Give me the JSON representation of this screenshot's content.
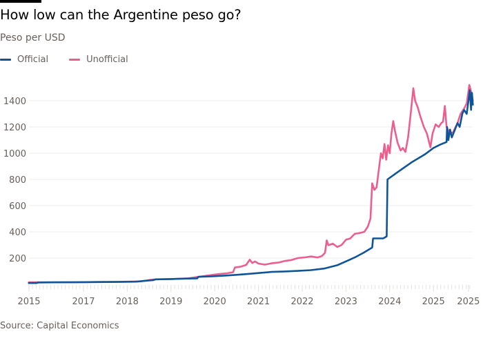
{
  "header": {
    "title": "How low can the Argentine peso go?",
    "subtitle": "Peso per USD"
  },
  "legend": [
    {
      "label": "Official",
      "color": "#0f5499"
    },
    {
      "label": "Unofficial",
      "color": "#eb5e8d"
    }
  ],
  "footer": {
    "source": "Source: Capital Economics"
  },
  "chart_data": {
    "type": "line",
    "title": "How low can the Argentine peso go?",
    "subtitle": "Peso per USD",
    "xlabel": "",
    "ylabel": "Peso per USD",
    "xlim": [
      2015.75,
      2026.0
    ],
    "ylim": [
      0,
      1500
    ],
    "grid": true,
    "legend_position": "top-left",
    "y_ticks": [
      200,
      400,
      600,
      800,
      1000,
      1200,
      1400
    ],
    "x_tick_labels": [
      {
        "label": "2015",
        "at": 2015.75
      },
      {
        "label": "2017",
        "at": 2017.0
      },
      {
        "label": "2018",
        "at": 2018.0
      },
      {
        "label": "2019",
        "at": 2019.0
      },
      {
        "label": "2020",
        "at": 2020.0
      },
      {
        "label": "2021",
        "at": 2021.0
      },
      {
        "label": "2022",
        "at": 2022.0
      },
      {
        "label": "2023",
        "at": 2023.0
      },
      {
        "label": "2024",
        "at": 2024.0
      },
      {
        "label": "2025",
        "at": 2025.0
      },
      {
        "label": "2025",
        "at": 2025.8
      }
    ],
    "series": [
      {
        "name": "Unofficial",
        "color": "#eb5e8d",
        "points": [
          [
            2015.75,
            15
          ],
          [
            2015.95,
            15
          ],
          [
            2016.3,
            15
          ],
          [
            2016.8,
            16
          ],
          [
            2017.3,
            18
          ],
          [
            2017.8,
            19
          ],
          [
            2018.3,
            22
          ],
          [
            2018.6,
            37
          ],
          [
            2019.0,
            40
          ],
          [
            2019.4,
            45
          ],
          [
            2019.62,
            57
          ],
          [
            2019.75,
            62
          ],
          [
            2019.95,
            72
          ],
          [
            2020.1,
            78
          ],
          [
            2020.3,
            85
          ],
          [
            2020.42,
            92
          ],
          [
            2020.46,
            128
          ],
          [
            2020.6,
            135
          ],
          [
            2020.72,
            148
          ],
          [
            2020.8,
            188
          ],
          [
            2020.86,
            162
          ],
          [
            2020.92,
            175
          ],
          [
            2021.0,
            158
          ],
          [
            2021.15,
            150
          ],
          [
            2021.3,
            160
          ],
          [
            2021.45,
            165
          ],
          [
            2021.6,
            178
          ],
          [
            2021.75,
            185
          ],
          [
            2021.9,
            200
          ],
          [
            2022.05,
            205
          ],
          [
            2022.2,
            212
          ],
          [
            2022.35,
            205
          ],
          [
            2022.45,
            215
          ],
          [
            2022.52,
            240
          ],
          [
            2022.56,
            335
          ],
          [
            2022.6,
            298
          ],
          [
            2022.7,
            310
          ],
          [
            2022.8,
            285
          ],
          [
            2022.9,
            300
          ],
          [
            2023.0,
            340
          ],
          [
            2023.1,
            350
          ],
          [
            2023.2,
            385
          ],
          [
            2023.3,
            390
          ],
          [
            2023.42,
            400
          ],
          [
            2023.5,
            440
          ],
          [
            2023.56,
            500
          ],
          [
            2023.6,
            770
          ],
          [
            2023.65,
            720
          ],
          [
            2023.7,
            740
          ],
          [
            2023.76,
            900
          ],
          [
            2023.8,
            1000
          ],
          [
            2023.84,
            960
          ],
          [
            2023.88,
            1070
          ],
          [
            2023.92,
            950
          ],
          [
            2023.96,
            1060
          ],
          [
            2024.0,
            1000
          ],
          [
            2024.04,
            1150
          ],
          [
            2024.08,
            1245
          ],
          [
            2024.12,
            1170
          ],
          [
            2024.18,
            1080
          ],
          [
            2024.25,
            1020
          ],
          [
            2024.3,
            1040
          ],
          [
            2024.36,
            1010
          ],
          [
            2024.42,
            1120
          ],
          [
            2024.48,
            1300
          ],
          [
            2024.54,
            1495
          ],
          [
            2024.58,
            1400
          ],
          [
            2024.64,
            1350
          ],
          [
            2024.7,
            1280
          ],
          [
            2024.78,
            1200
          ],
          [
            2024.85,
            1150
          ],
          [
            2024.93,
            1045
          ],
          [
            2024.98,
            1150
          ],
          [
            2025.05,
            1220
          ],
          [
            2025.12,
            1200
          ],
          [
            2025.18,
            1230
          ],
          [
            2025.22,
            1240
          ],
          [
            2025.26,
            1360
          ],
          [
            2025.3,
            1200
          ],
          [
            2025.38,
            1150
          ],
          [
            2025.45,
            1160
          ],
          [
            2025.55,
            1230
          ],
          [
            2025.62,
            1300
          ],
          [
            2025.7,
            1340
          ],
          [
            2025.76,
            1380
          ],
          [
            2025.82,
            1520
          ],
          [
            2025.86,
            1470
          ],
          [
            2025.9,
            1400
          ]
        ]
      },
      {
        "name": "Official",
        "color": "#0f5499",
        "points": [
          [
            2015.75,
            9.5
          ],
          [
            2015.93,
            9.7
          ],
          [
            2015.96,
            13.5
          ],
          [
            2016.3,
            14.5
          ],
          [
            2016.8,
            15.5
          ],
          [
            2017.3,
            17
          ],
          [
            2017.8,
            18
          ],
          [
            2018.2,
            20
          ],
          [
            2018.35,
            25
          ],
          [
            2018.6,
            32
          ],
          [
            2018.65,
            38
          ],
          [
            2019.0,
            40
          ],
          [
            2019.3,
            43
          ],
          [
            2019.6,
            45
          ],
          [
            2019.63,
            57
          ],
          [
            2019.9,
            60
          ],
          [
            2020.2,
            65
          ],
          [
            2020.5,
            72
          ],
          [
            2020.8,
            80
          ],
          [
            2021.0,
            86
          ],
          [
            2021.3,
            94
          ],
          [
            2021.6,
            98
          ],
          [
            2021.9,
            102
          ],
          [
            2022.2,
            108
          ],
          [
            2022.5,
            120
          ],
          [
            2022.8,
            145
          ],
          [
            2023.0,
            175
          ],
          [
            2023.2,
            205
          ],
          [
            2023.4,
            240
          ],
          [
            2023.6,
            280
          ],
          [
            2023.62,
            350
          ],
          [
            2023.85,
            350
          ],
          [
            2023.93,
            365
          ],
          [
            2023.95,
            800
          ],
          [
            2024.2,
            860
          ],
          [
            2024.5,
            930
          ],
          [
            2024.8,
            990
          ],
          [
            2025.0,
            1040
          ],
          [
            2025.15,
            1065
          ],
          [
            2025.3,
            1085
          ],
          [
            2025.31,
            1200
          ],
          [
            2025.34,
            1100
          ],
          [
            2025.38,
            1180
          ],
          [
            2025.42,
            1120
          ],
          [
            2025.48,
            1170
          ],
          [
            2025.55,
            1230
          ],
          [
            2025.6,
            1200
          ],
          [
            2025.66,
            1300
          ],
          [
            2025.7,
            1330
          ],
          [
            2025.76,
            1300
          ],
          [
            2025.8,
            1400
          ],
          [
            2025.83,
            1480
          ],
          [
            2025.86,
            1330
          ],
          [
            2025.88,
            1460
          ],
          [
            2025.9,
            1370
          ]
        ]
      }
    ]
  }
}
